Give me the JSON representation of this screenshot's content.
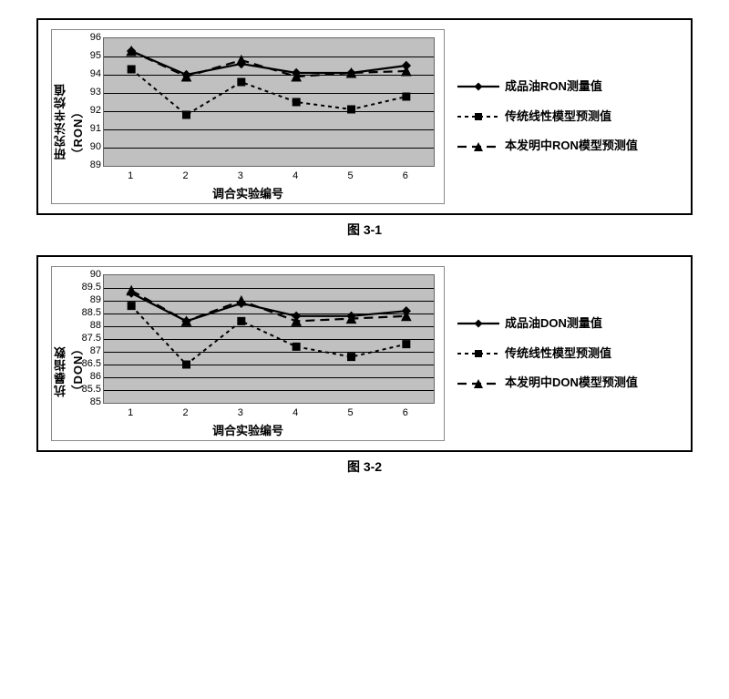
{
  "figures": [
    {
      "caption": "图 3-1",
      "chart": {
        "type": "line",
        "xlabel": "调合实验编号",
        "ylabel": "研究法辛烷值（RON）",
        "categories": [
          1,
          2,
          3,
          4,
          5,
          6
        ],
        "ylim": [
          89,
          96
        ],
        "ytick_step": 1,
        "background_color": "#c0c0c0",
        "grid_color": "#000000",
        "axis_fontsize": 11,
        "label_fontsize": 13,
        "series": [
          {
            "name": "成品油RON测量值",
            "values": [
              95.3,
              94.0,
              94.6,
              94.1,
              94.1,
              94.5
            ],
            "color": "#000000",
            "line_style": "solid",
            "line_width": 2.2,
            "marker": "diamond",
            "marker_size": 9
          },
          {
            "name": "传统线性模型预测值",
            "values": [
              94.3,
              91.8,
              93.6,
              92.5,
              92.1,
              92.8
            ],
            "color": "#000000",
            "line_style": "dash",
            "line_width": 2,
            "marker": "square",
            "marker_size": 8
          },
          {
            "name": "本发明中RON模型预测值",
            "values": [
              95.3,
              93.9,
              94.8,
              93.9,
              94.1,
              94.2
            ],
            "color": "#000000",
            "line_style": "longdash",
            "line_width": 2.2,
            "marker": "triangle",
            "marker_size": 10
          }
        ]
      }
    },
    {
      "caption": "图 3-2",
      "chart": {
        "type": "line",
        "xlabel": "调合实验编号",
        "ylabel": "抗暴指数（DON）",
        "categories": [
          1,
          2,
          3,
          4,
          5,
          6
        ],
        "ylim": [
          85,
          90
        ],
        "ytick_step": 0.5,
        "background_color": "#c0c0c0",
        "grid_color": "#000000",
        "axis_fontsize": 11,
        "label_fontsize": 13,
        "series": [
          {
            "name": "成品油DON测量值",
            "values": [
              89.3,
              88.2,
              88.9,
              88.4,
              88.4,
              88.6
            ],
            "color": "#000000",
            "line_style": "solid",
            "line_width": 2.2,
            "marker": "diamond",
            "marker_size": 9
          },
          {
            "name": "传统线性模型预测值",
            "values": [
              88.8,
              86.5,
              88.2,
              87.2,
              86.8,
              87.3
            ],
            "color": "#000000",
            "line_style": "dash",
            "line_width": 2,
            "marker": "square",
            "marker_size": 8
          },
          {
            "name": "本发明中DON模型预测值",
            "values": [
              89.4,
              88.2,
              89.0,
              88.2,
              88.3,
              88.4
            ],
            "color": "#000000",
            "line_style": "longdash",
            "line_width": 2.2,
            "marker": "triangle",
            "marker_size": 10
          }
        ]
      }
    }
  ]
}
